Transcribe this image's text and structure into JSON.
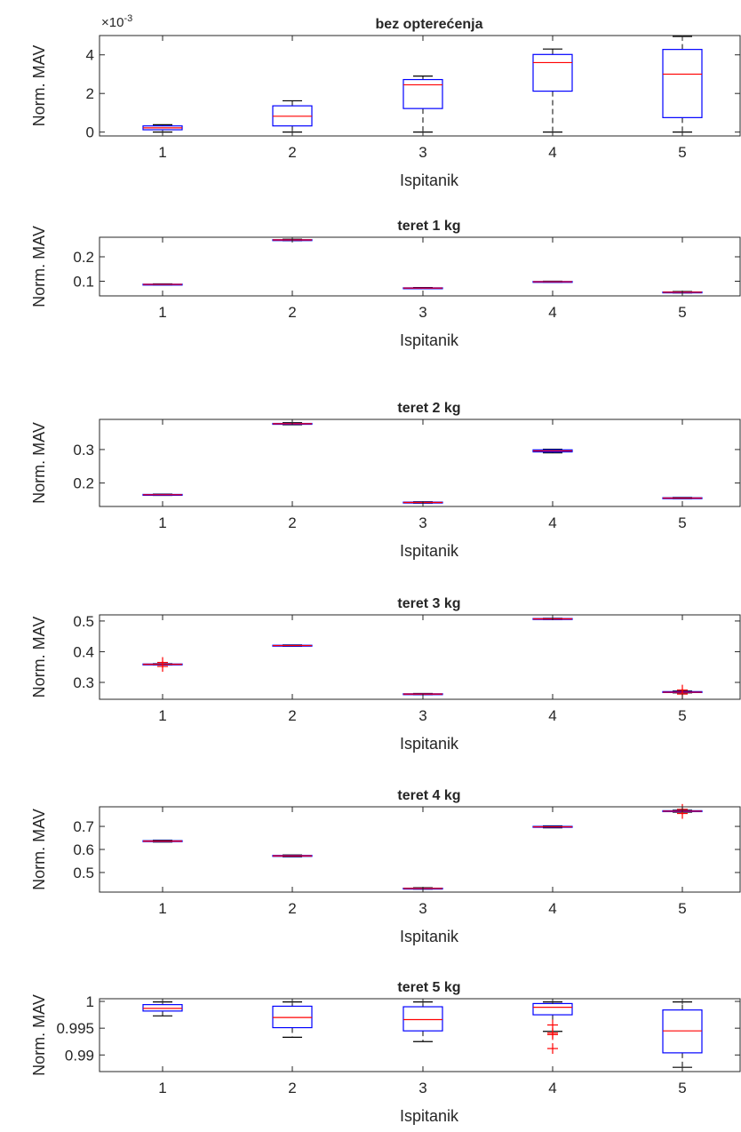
{
  "figure": {
    "xlabel": "Ispitanik",
    "ylabel": "Norm. MAV",
    "colors": {
      "box": "#0000ff",
      "median": "#ff0000",
      "whisker": "#000000",
      "outlier": "#ff0000",
      "axis": "#262626"
    }
  },
  "chart_data": [
    {
      "type": "box",
      "title": "bez opterećenja",
      "xlabel": "Ispitanik",
      "ylabel": "Norm. MAV",
      "exponent_label": "×10",
      "exponent_power": "-3",
      "categories": [
        "1",
        "2",
        "3",
        "4",
        "5"
      ],
      "yticks": [
        0,
        2,
        4
      ],
      "ytick_labels": [
        "0",
        "2",
        "4"
      ],
      "ylim": [
        -0.2,
        5.0
      ],
      "boxes": [
        {
          "min": 0.0,
          "q1": 0.12,
          "median": 0.22,
          "q3": 0.32,
          "max": 0.38,
          "outliers": []
        },
        {
          "min": 0.0,
          "q1": 0.32,
          "median": 0.82,
          "q3": 1.36,
          "max": 1.62,
          "outliers": []
        },
        {
          "min": 0.0,
          "q1": 1.22,
          "median": 2.45,
          "q3": 2.72,
          "max": 2.9,
          "outliers": []
        },
        {
          "min": 0.0,
          "q1": 2.12,
          "median": 3.6,
          "q3": 4.02,
          "max": 4.3,
          "outliers": []
        },
        {
          "min": 0.0,
          "q1": 0.75,
          "median": 3.0,
          "q3": 4.28,
          "max": 4.95,
          "outliers": []
        }
      ]
    },
    {
      "type": "box",
      "title": "teret 1 kg",
      "xlabel": "Ispitanik",
      "ylabel": "Norm. MAV",
      "categories": [
        "1",
        "2",
        "3",
        "4",
        "5"
      ],
      "yticks": [
        0.1,
        0.2
      ],
      "ytick_labels": [
        "0.1",
        "0.2"
      ],
      "ylim": [
        0.04,
        0.28
      ],
      "boxes": [
        {
          "min": 0.085,
          "q1": 0.086,
          "median": 0.087,
          "q3": 0.088,
          "max": 0.089,
          "outliers": []
        },
        {
          "min": 0.266,
          "q1": 0.268,
          "median": 0.269,
          "q3": 0.27,
          "max": 0.272,
          "outliers": []
        },
        {
          "min": 0.07,
          "q1": 0.071,
          "median": 0.072,
          "q3": 0.073,
          "max": 0.074,
          "outliers": []
        },
        {
          "min": 0.096,
          "q1": 0.097,
          "median": 0.098,
          "q3": 0.099,
          "max": 0.1,
          "outliers": []
        },
        {
          "min": 0.052,
          "q1": 0.054,
          "median": 0.055,
          "q3": 0.056,
          "max": 0.058,
          "outliers": []
        }
      ]
    },
    {
      "type": "box",
      "title": "teret 2 kg",
      "xlabel": "Ispitanik",
      "ylabel": "Norm. MAV",
      "categories": [
        "1",
        "2",
        "3",
        "4",
        "5"
      ],
      "yticks": [
        0.2,
        0.3
      ],
      "ytick_labels": [
        "0.2",
        "0.3"
      ],
      "ylim": [
        0.13,
        0.39
      ],
      "boxes": [
        {
          "min": 0.163,
          "q1": 0.164,
          "median": 0.165,
          "q3": 0.166,
          "max": 0.167,
          "outliers": []
        },
        {
          "min": 0.374,
          "q1": 0.376,
          "median": 0.377,
          "q3": 0.378,
          "max": 0.38,
          "outliers": []
        },
        {
          "min": 0.14,
          "q1": 0.141,
          "median": 0.142,
          "q3": 0.143,
          "max": 0.144,
          "outliers": []
        },
        {
          "min": 0.29,
          "q1": 0.293,
          "median": 0.296,
          "q3": 0.299,
          "max": 0.301,
          "outliers": []
        },
        {
          "min": 0.153,
          "q1": 0.154,
          "median": 0.155,
          "q3": 0.156,
          "max": 0.157,
          "outliers": []
        }
      ]
    },
    {
      "type": "box",
      "title": "teret 3 kg",
      "xlabel": "Ispitanik",
      "ylabel": "Norm. MAV",
      "categories": [
        "1",
        "2",
        "3",
        "4",
        "5"
      ],
      "yticks": [
        0.3,
        0.4,
        0.5
      ],
      "ytick_labels": [
        "0.3",
        "0.4",
        "0.5"
      ],
      "ylim": [
        0.245,
        0.52
      ],
      "boxes": [
        {
          "min": 0.357,
          "q1": 0.358,
          "median": 0.359,
          "q3": 0.36,
          "max": 0.361,
          "outliers": [
            0.352,
            0.365
          ]
        },
        {
          "min": 0.418,
          "q1": 0.419,
          "median": 0.42,
          "q3": 0.421,
          "max": 0.422,
          "outliers": []
        },
        {
          "min": 0.26,
          "q1": 0.261,
          "median": 0.262,
          "q3": 0.263,
          "max": 0.264,
          "outliers": []
        },
        {
          "min": 0.505,
          "q1": 0.506,
          "median": 0.507,
          "q3": 0.508,
          "max": 0.509,
          "outliers": []
        },
        {
          "min": 0.266,
          "q1": 0.267,
          "median": 0.268,
          "q3": 0.27,
          "max": 0.272,
          "outliers": [
            0.262,
            0.275
          ]
        }
      ]
    },
    {
      "type": "box",
      "title": "teret 4 kg",
      "xlabel": "Ispitanik",
      "ylabel": "Norm. MAV",
      "categories": [
        "1",
        "2",
        "3",
        "4",
        "5"
      ],
      "yticks": [
        0.5,
        0.6,
        0.7
      ],
      "ytick_labels": [
        "0.5",
        "0.6",
        "0.7"
      ],
      "ylim": [
        0.415,
        0.785
      ],
      "boxes": [
        {
          "min": 0.632,
          "q1": 0.634,
          "median": 0.636,
          "q3": 0.638,
          "max": 0.64,
          "outliers": []
        },
        {
          "min": 0.568,
          "q1": 0.57,
          "median": 0.572,
          "q3": 0.574,
          "max": 0.576,
          "outliers": []
        },
        {
          "min": 0.428,
          "q1": 0.43,
          "median": 0.431,
          "q3": 0.432,
          "max": 0.434,
          "outliers": []
        },
        {
          "min": 0.694,
          "q1": 0.696,
          "median": 0.698,
          "q3": 0.7,
          "max": 0.702,
          "outliers": []
        },
        {
          "min": 0.762,
          "q1": 0.764,
          "median": 0.766,
          "q3": 0.768,
          "max": 0.77,
          "outliers": [
            0.756,
            0.774
          ]
        }
      ]
    },
    {
      "type": "box",
      "title": "teret 5 kg",
      "xlabel": "Ispitanik",
      "ylabel": "Norm. MAV",
      "categories": [
        "1",
        "2",
        "3",
        "4",
        "5"
      ],
      "yticks": [
        0.99,
        0.995,
        1.0
      ],
      "ytick_labels": [
        "0.99",
        "0.995",
        "1"
      ],
      "ylim": [
        0.9869,
        1.0005
      ],
      "boxes": [
        {
          "min": 0.9973,
          "q1": 0.9982,
          "median": 0.9987,
          "q3": 0.9994,
          "max": 0.9999,
          "outliers": []
        },
        {
          "min": 0.9933,
          "q1": 0.9951,
          "median": 0.997,
          "q3": 0.9991,
          "max": 0.9999,
          "outliers": []
        },
        {
          "min": 0.9925,
          "q1": 0.9945,
          "median": 0.9966,
          "q3": 0.999,
          "max": 0.9999,
          "outliers": []
        },
        {
          "min": 0.9944,
          "q1": 0.9975,
          "median": 0.9989,
          "q3": 0.9996,
          "max": 0.9999,
          "outliers": [
            0.9956,
            0.9941,
            0.9938,
            0.9912
          ]
        },
        {
          "min": 0.9877,
          "q1": 0.9904,
          "median": 0.9945,
          "q3": 0.9984,
          "max": 0.9999,
          "outliers": []
        }
      ]
    }
  ]
}
